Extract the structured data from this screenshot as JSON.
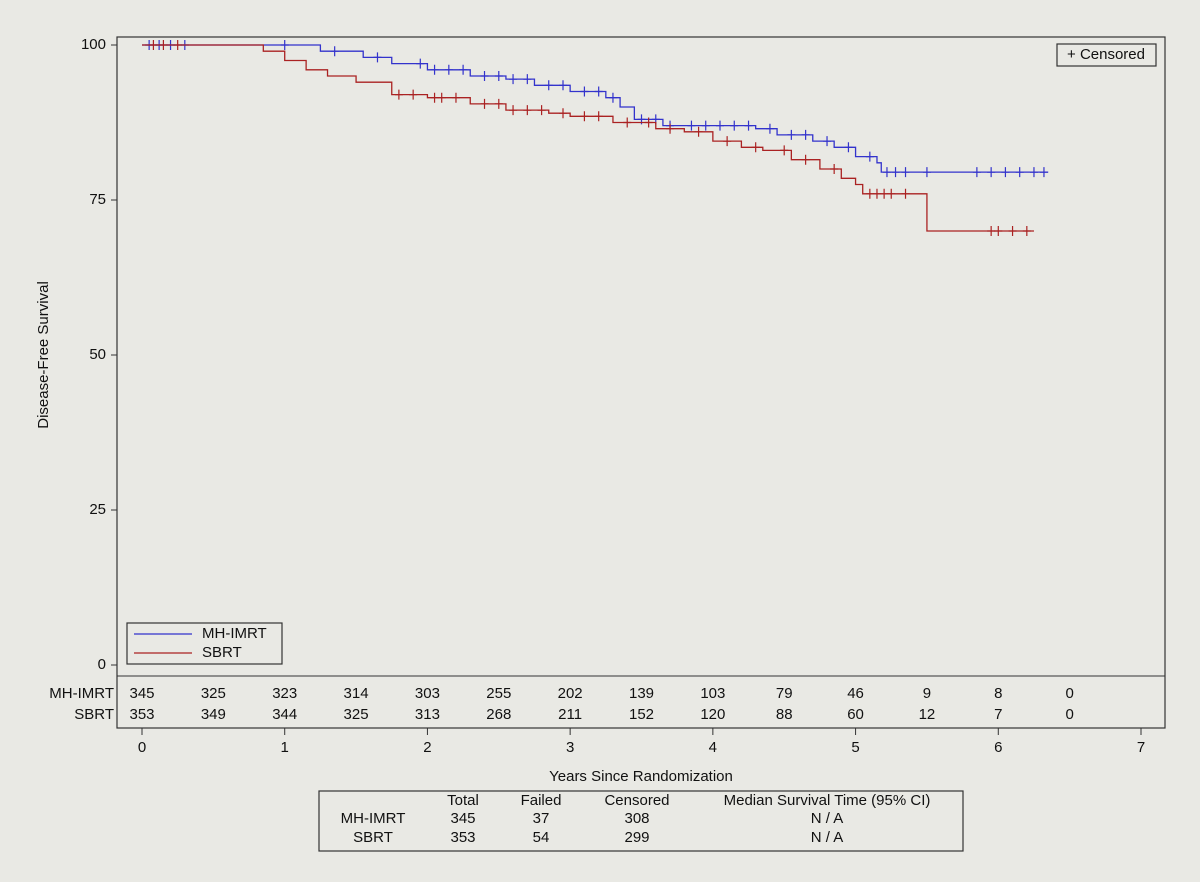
{
  "chart_data": {
    "type": "step",
    "x_label": "Years Since Randomization",
    "y_label": "Disease-Free Survival",
    "xlim": [
      0,
      7
    ],
    "xticks": [
      0,
      1,
      2,
      3,
      4,
      5,
      6,
      7
    ],
    "ylim": [
      0,
      100
    ],
    "yticks": [
      0,
      25,
      50,
      75,
      100
    ],
    "censor_legend": "+ Censored",
    "series": [
      {
        "name": "MH-IMRT",
        "color": "#3333cc",
        "x": [
          0,
          0.8,
          1.25,
          1.55,
          1.75,
          2.0,
          2.3,
          2.55,
          2.75,
          3.0,
          3.25,
          3.35,
          3.45,
          3.65,
          4.3,
          4.45,
          4.7,
          4.85,
          5.0,
          5.15,
          5.18,
          6.35
        ],
        "values": [
          100,
          100,
          99,
          98,
          97,
          96,
          95,
          94.5,
          93.5,
          92.5,
          91.5,
          90,
          88,
          87,
          86.5,
          85.5,
          84.5,
          83.5,
          82,
          81,
          79.5,
          79.5
        ],
        "censored": [
          0.05,
          0.12,
          0.2,
          0.3,
          1.0,
          1.35,
          1.65,
          1.95,
          2.05,
          2.15,
          2.25,
          2.4,
          2.5,
          2.6,
          2.7,
          2.85,
          2.95,
          3.1,
          3.2,
          3.3,
          3.5,
          3.6,
          3.7,
          3.85,
          3.95,
          4.05,
          4.15,
          4.25,
          4.4,
          4.55,
          4.65,
          4.8,
          4.95,
          5.1,
          5.22,
          5.28,
          5.35,
          5.5,
          5.85,
          5.95,
          6.05,
          6.15,
          6.25,
          6.32
        ]
      },
      {
        "name": "SBRT",
        "color": "#aa2222",
        "x": [
          0,
          0.75,
          0.85,
          1.0,
          1.15,
          1.3,
          1.5,
          1.75,
          2.0,
          2.3,
          2.55,
          2.85,
          3.0,
          3.3,
          3.6,
          3.8,
          4.0,
          4.2,
          4.35,
          4.55,
          4.75,
          4.9,
          5.0,
          5.05,
          5.5,
          6.25
        ],
        "values": [
          100,
          100,
          99,
          97.5,
          96,
          95,
          94,
          92,
          91.5,
          90.5,
          89.5,
          89,
          88.5,
          87.5,
          86.5,
          86,
          84.5,
          83.5,
          83,
          81.5,
          80,
          78.5,
          77.5,
          76,
          70,
          70
        ],
        "censored": [
          0.08,
          0.15,
          0.25,
          1.8,
          1.9,
          2.05,
          2.1,
          2.2,
          2.4,
          2.5,
          2.6,
          2.7,
          2.8,
          2.95,
          3.1,
          3.2,
          3.4,
          3.55,
          3.7,
          3.9,
          4.1,
          4.3,
          4.5,
          4.65,
          4.85,
          5.1,
          5.15,
          5.2,
          5.25,
          5.35,
          5.95,
          6.0,
          6.1,
          6.2
        ]
      }
    ],
    "at_risk": {
      "times": [
        0,
        0.5,
        1,
        1.5,
        2,
        2.5,
        3,
        3.5,
        4,
        4.5,
        5,
        5.5,
        6,
        6.5
      ],
      "rows": [
        {
          "name": "MH-IMRT",
          "values": [
            345,
            325,
            323,
            314,
            303,
            255,
            202,
            139,
            103,
            79,
            46,
            9,
            8,
            0
          ]
        },
        {
          "name": "SBRT",
          "values": [
            353,
            349,
            344,
            325,
            313,
            268,
            211,
            152,
            120,
            88,
            60,
            12,
            7,
            0
          ]
        }
      ]
    },
    "summary": {
      "header": [
        "Total",
        "Failed",
        "Censored",
        "Median Survival Time (95% CI)"
      ],
      "rows": [
        [
          "MH-IMRT",
          "345",
          "37",
          "308",
          "N / A"
        ],
        [
          "SBRT",
          "353",
          "54",
          "299",
          "N / A"
        ]
      ]
    }
  }
}
